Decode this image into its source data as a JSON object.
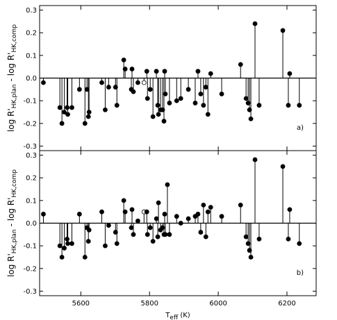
{
  "chart_data": [
    {
      "type": "stem",
      "panel_label": "a)",
      "ylabel": {
        "t1": "log R'",
        "s1": "HK,plan",
        "t2": " - log R'",
        "s2": "HK,comp"
      },
      "x": [
        5491,
        5539,
        5545,
        5552,
        5560,
        5562,
        5574,
        5596,
        5612,
        5618,
        5622,
        5624,
        5661,
        5671,
        5681,
        5701,
        5705,
        5725,
        5729,
        5747,
        5749,
        5753,
        5766,
        5784,
        5792,
        5794,
        5802,
        5810,
        5820,
        5824,
        5826,
        5832,
        5838,
        5842,
        5844,
        5846,
        5858,
        5879,
        5891,
        5913,
        5933,
        5941,
        5949,
        5957,
        5964,
        5970,
        5978,
        6010,
        6065,
        6081,
        6087,
        6091,
        6095,
        6107,
        6119,
        6188,
        6204,
        6208,
        6236
      ],
      "values": [
        -0.02,
        -0.13,
        -0.2,
        -0.15,
        -0.13,
        -0.16,
        -0.13,
        -0.05,
        -0.2,
        -0.05,
        -0.17,
        -0.15,
        -0.02,
        -0.14,
        -0.04,
        -0.04,
        -0.12,
        0.08,
        0.04,
        -0.05,
        0.04,
        -0.06,
        -0.02,
        -0.02,
        0.03,
        -0.09,
        -0.05,
        -0.17,
        0.03,
        -0.12,
        -0.16,
        -0.14,
        -0.14,
        -0.19,
        0.03,
        -0.07,
        -0.11,
        -0.1,
        -0.09,
        -0.05,
        -0.11,
        0.03,
        -0.07,
        -0.12,
        -0.04,
        -0.16,
        0.02,
        -0.07,
        0.06,
        -0.09,
        -0.11,
        -0.14,
        -0.18,
        0.24,
        -0.12,
        0.21,
        -0.12,
        0.02,
        -0.12
      ],
      "open_points": [
        23
      ],
      "xlim": [
        5480,
        6285
      ],
      "ylim": [
        -0.32,
        0.32
      ],
      "xticks": [
        5600,
        5800,
        6000,
        6200
      ],
      "yticks": [
        -0.3,
        -0.2,
        -0.1,
        {
          "value": 0,
          "label": "0.0"
        },
        0.1,
        0.2,
        0.3
      ],
      "color": "#000000"
    },
    {
      "type": "stem",
      "panel_label": "b)",
      "ylabel": {
        "t1": "log R'",
        "s1": "HK,plan",
        "t2": " - log R'",
        "s2": "HK,comp"
      },
      "xlabel": {
        "t": "T",
        "s": "eff",
        "u": " (K)"
      },
      "x": [
        5491,
        5539,
        5545,
        5552,
        5560,
        5562,
        5574,
        5596,
        5612,
        5618,
        5622,
        5624,
        5661,
        5671,
        5681,
        5701,
        5705,
        5725,
        5729,
        5747,
        5749,
        5753,
        5766,
        5784,
        5792,
        5794,
        5802,
        5810,
        5820,
        5824,
        5826,
        5832,
        5838,
        5842,
        5844,
        5846,
        5852,
        5858,
        5879,
        5891,
        5913,
        5933,
        5941,
        5949,
        5957,
        5964,
        5970,
        5978,
        6010,
        6065,
        6081,
        6087,
        6091,
        6095,
        6107,
        6119,
        6188,
        6204,
        6208,
        6236
      ],
      "values": [
        0.04,
        -0.1,
        -0.15,
        -0.11,
        -0.07,
        -0.09,
        -0.09,
        0.04,
        -0.15,
        -0.02,
        -0.08,
        -0.03,
        0.05,
        -0.1,
        -0.01,
        -0.04,
        -0.09,
        0.1,
        0.05,
        -0.02,
        0.06,
        -0.05,
        0.01,
        0.05,
        0.05,
        -0.05,
        -0.02,
        -0.08,
        0.02,
        -0.06,
        0.09,
        -0.03,
        -0.02,
        -0.05,
        0.04,
        -0.05,
        0.17,
        -0.05,
        0.03,
        0.0,
        0.02,
        0.03,
        0.04,
        -0.04,
        0.08,
        -0.06,
        0.05,
        0.07,
        0.03,
        0.08,
        -0.06,
        -0.09,
        -0.12,
        -0.15,
        0.28,
        -0.07,
        0.25,
        -0.07,
        0.06,
        -0.09
      ],
      "open_points": [
        23
      ],
      "xlim": [
        5480,
        6285
      ],
      "ylim": [
        -0.32,
        0.32
      ],
      "xticks": [
        5600,
        5800,
        6000,
        6200
      ],
      "yticks": [
        -0.3,
        -0.2,
        -0.1,
        {
          "value": 0,
          "label": "0.0"
        },
        0.1,
        0.2,
        0.3
      ],
      "color": "#000000"
    }
  ]
}
